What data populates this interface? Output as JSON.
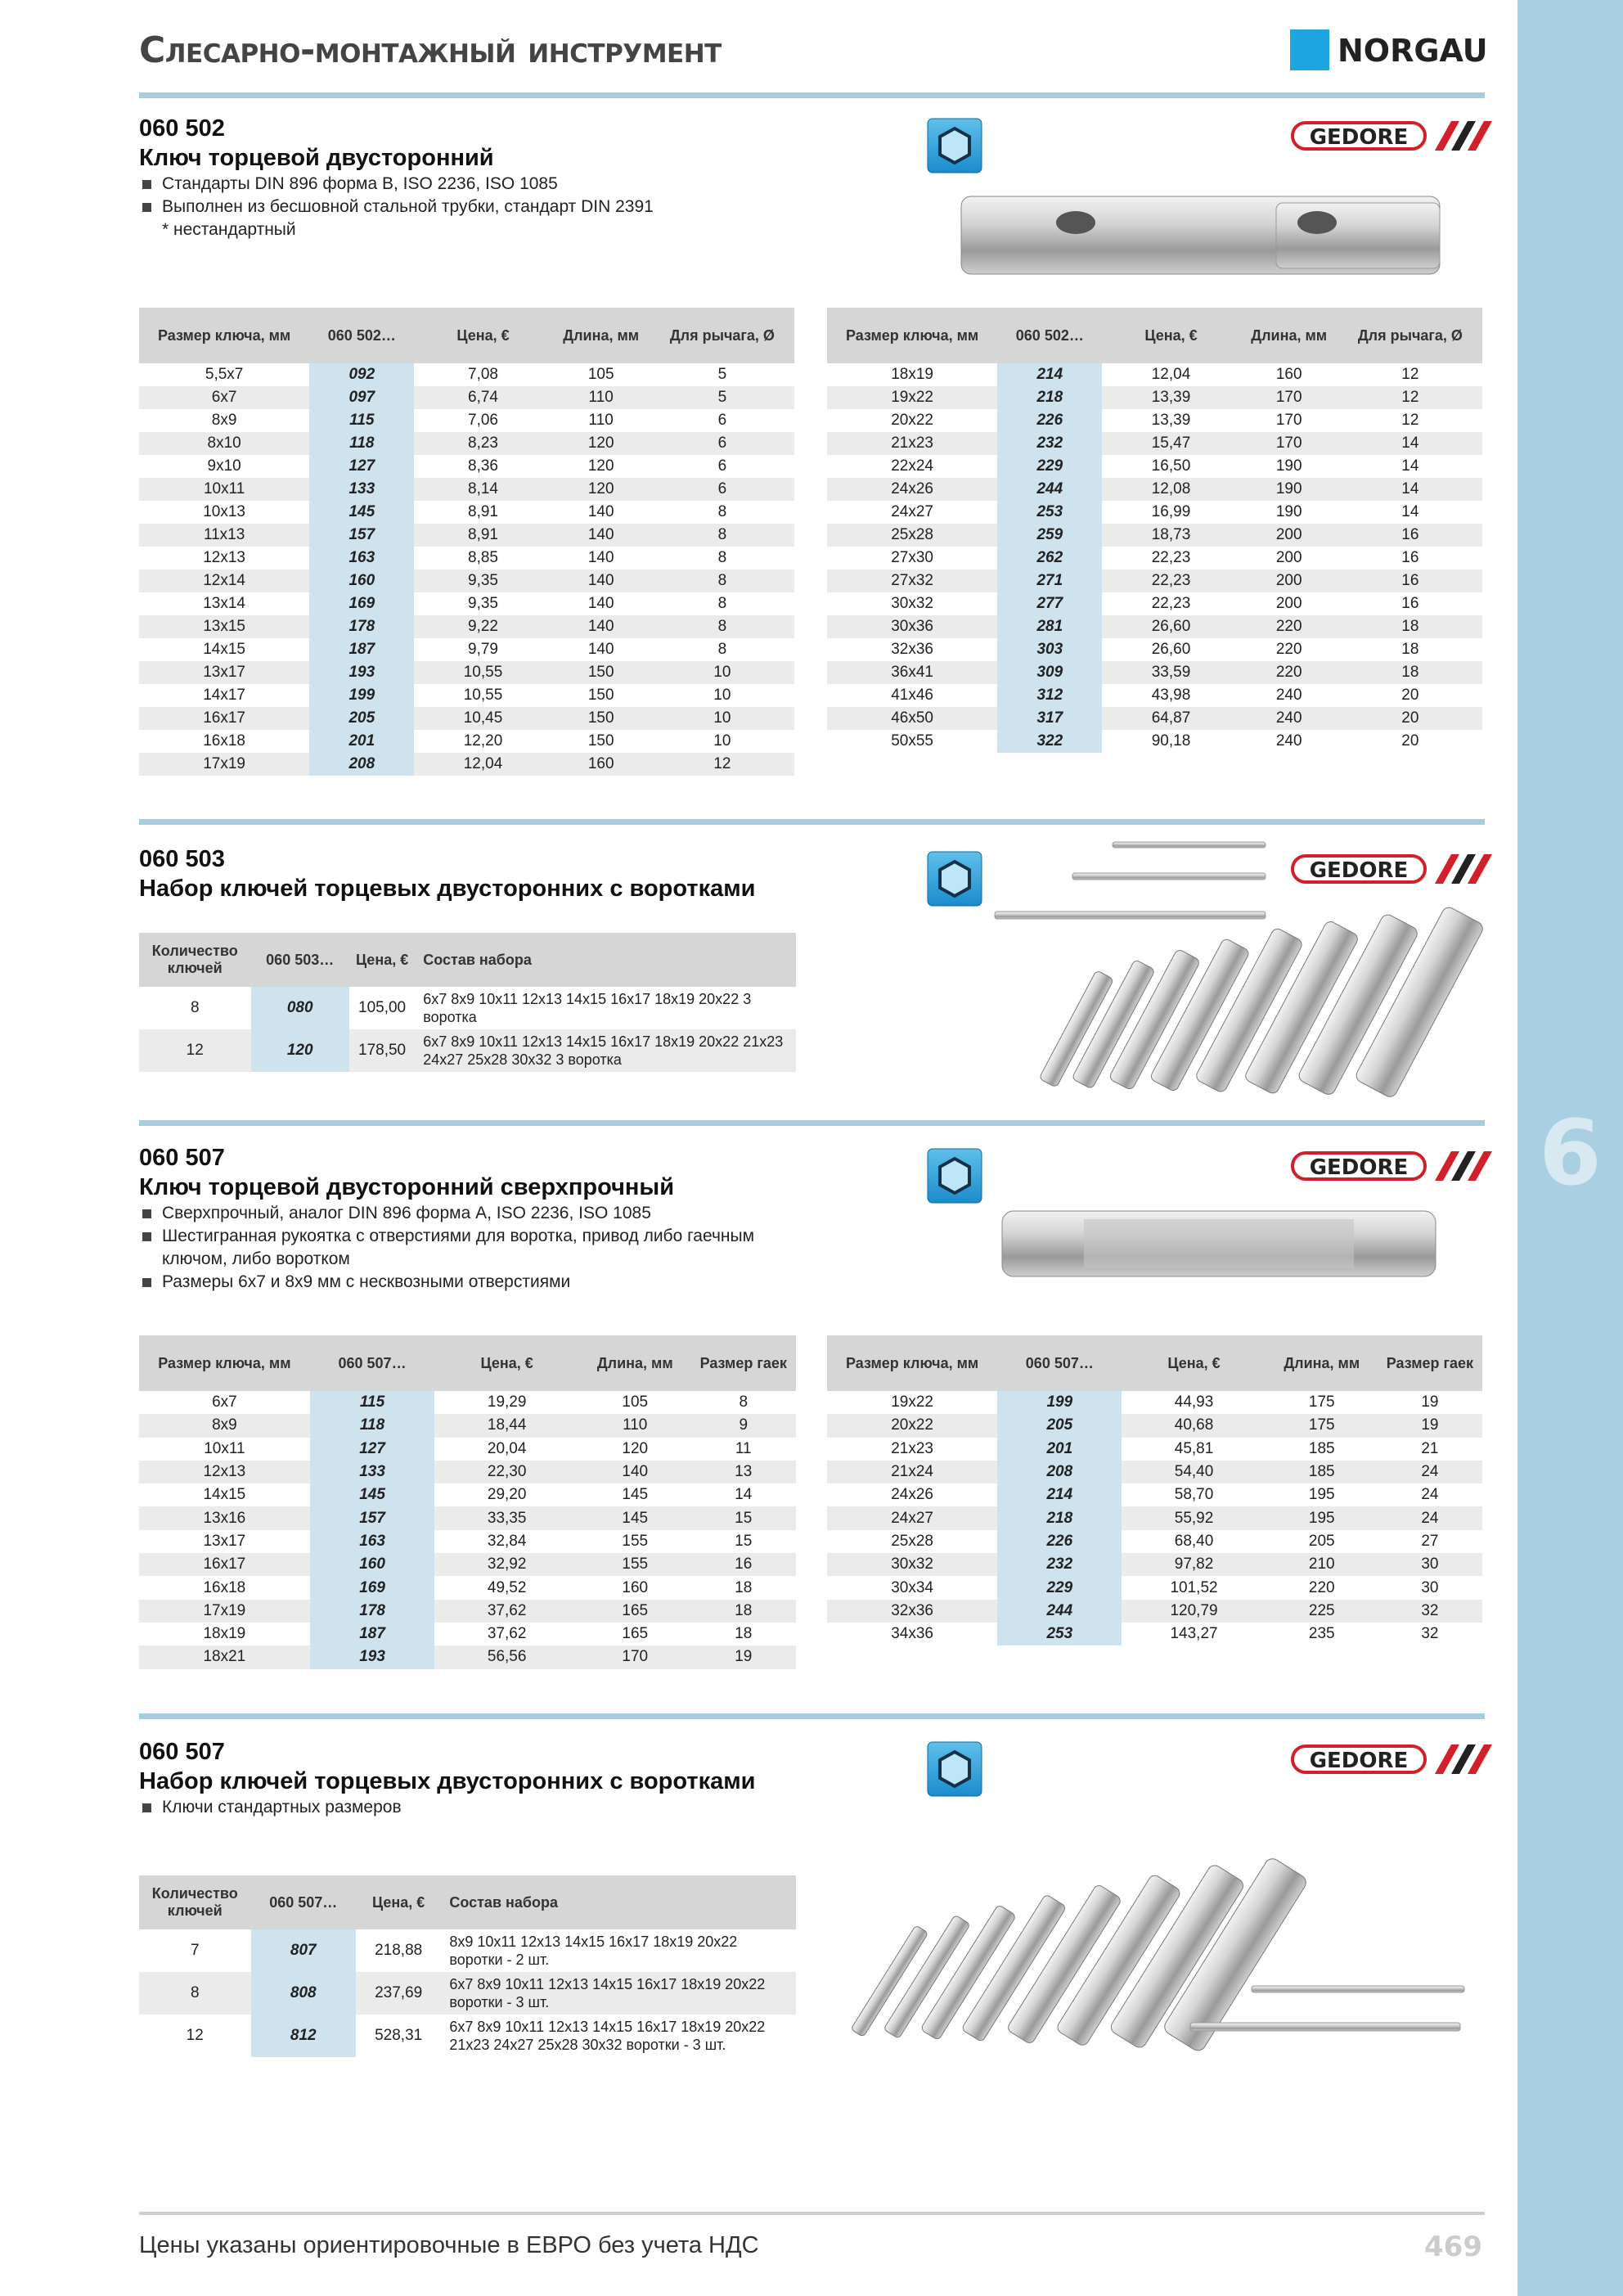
{
  "header": {
    "title": "Слесарно-монтажный инструмент",
    "brand": "NORGAU"
  },
  "side_tab": "6",
  "sections": [
    {
      "code": "060 502",
      "title": "Ключ торцевой двусторонний",
      "bullets": [
        "Стандарты DIN 896 форма B, ISO 2236, ISO 1085",
        "Выполнен из бесшовной стальной трубки, стандарт DIN 2391"
      ],
      "note": "* нестандартный",
      "logo": "GEDORE",
      "tables": [
        {
          "columns": [
            "Размер ключа, мм",
            "060 502…",
            "Цена, €",
            "Длина, мм",
            "Для рычага, Ø"
          ],
          "rows": [
            [
              "5,5x7",
              "092",
              "7,08",
              "105",
              "5"
            ],
            [
              "6x7",
              "097",
              "6,74",
              "110",
              "5"
            ],
            [
              "8x9",
              "115",
              "7,06",
              "110",
              "6"
            ],
            [
              "8x10",
              "118",
              "8,23",
              "120",
              "6"
            ],
            [
              "9x10",
              "127",
              "8,36",
              "120",
              "6"
            ],
            [
              "10x11",
              "133",
              "8,14",
              "120",
              "6"
            ],
            [
              "10x13",
              "145",
              "8,91",
              "140",
              "8"
            ],
            [
              "11x13",
              "157",
              "8,91",
              "140",
              "8"
            ],
            [
              "12x13",
              "163",
              "8,85",
              "140",
              "8"
            ],
            [
              "12x14",
              "160",
              "9,35",
              "140",
              "8"
            ],
            [
              "13x14",
              "169",
              "9,35",
              "140",
              "8"
            ],
            [
              "13x15",
              "178",
              "9,22",
              "140",
              "8"
            ],
            [
              "14x15",
              "187",
              "9,79",
              "140",
              "8"
            ],
            [
              "13x17",
              "193",
              "10,55",
              "150",
              "10"
            ],
            [
              "14x17",
              "199",
              "10,55",
              "150",
              "10"
            ],
            [
              "16x17",
              "205",
              "10,45",
              "150",
              "10"
            ],
            [
              "16x18",
              "201",
              "12,20",
              "150",
              "10"
            ],
            [
              "17x19",
              "208",
              "12,04",
              "160",
              "12"
            ]
          ]
        },
        {
          "columns": [
            "Размер ключа, мм",
            "060 502…",
            "Цена, €",
            "Длина, мм",
            "Для рычага, Ø"
          ],
          "rows": [
            [
              "18x19",
              "214",
              "12,04",
              "160",
              "12"
            ],
            [
              "19x22",
              "218",
              "13,39",
              "170",
              "12"
            ],
            [
              "20x22",
              "226",
              "13,39",
              "170",
              "12"
            ],
            [
              "21x23",
              "232",
              "15,47",
              "170",
              "14"
            ],
            [
              "22x24",
              "229",
              "16,50",
              "190",
              "14"
            ],
            [
              "24x26",
              "244",
              "12,08",
              "190",
              "14"
            ],
            [
              "24x27",
              "253",
              "16,99",
              "190",
              "14"
            ],
            [
              "25x28",
              "259",
              "18,73",
              "200",
              "16"
            ],
            [
              "27x30",
              "262",
              "22,23",
              "200",
              "16"
            ],
            [
              "27x32",
              "271",
              "22,23",
              "200",
              "16"
            ],
            [
              "30x32",
              "277",
              "22,23",
              "200",
              "16"
            ],
            [
              "30x36",
              "281",
              "26,60",
              "220",
              "18"
            ],
            [
              "32x36",
              "303",
              "26,60",
              "220",
              "18"
            ],
            [
              "36x41",
              "309",
              "33,59",
              "220",
              "18"
            ],
            [
              "41x46",
              "312",
              "43,98",
              "240",
              "20"
            ],
            [
              "46x50",
              "317",
              "64,87",
              "240",
              "20"
            ],
            [
              "50x55",
              "322",
              "90,18",
              "240",
              "20"
            ]
          ]
        }
      ]
    },
    {
      "code": "060 503",
      "title": "Набор ключей торцевых двусторонних с воротками",
      "logo": "GEDORE",
      "tables": [
        {
          "columns": [
            "Количество ключей",
            "060 503…",
            "Цена, €",
            "Состав набора"
          ],
          "rows": [
            [
              "8",
              "080",
              "105,00",
              "6x7  8x9  10x11  12x13  14x15  16x17  18x19  20x22 3 воротка"
            ],
            [
              "12",
              "120",
              "178,50",
              "6x7  8x9  10x11  12x13  14x15  16x17  18x19  20x22 21x23  24x27  25x28  30x32  3 воротка"
            ]
          ]
        }
      ]
    },
    {
      "code": "060 507",
      "title": "Ключ торцевой двусторонний сверхпрочный",
      "bullets": [
        "Сверхпрочный, аналог DIN 896 форма A, ISO 2236, ISO 1085",
        "Шестигранная рукоятка с отверстиями для воротка, привод либо гаечным ключом, либо воротком",
        "Размеры 6x7 и 8x9 мм с несквозными отверстиями"
      ],
      "logo": "GEDORE",
      "tables": [
        {
          "columns": [
            "Размер ключа, мм",
            "060 507…",
            "Цена, €",
            "Длина, мм",
            "Размер гаек"
          ],
          "rows": [
            [
              "6x7",
              "115",
              "19,29",
              "105",
              "8"
            ],
            [
              "8x9",
              "118",
              "18,44",
              "110",
              "9"
            ],
            [
              "10x11",
              "127",
              "20,04",
              "120",
              "11"
            ],
            [
              "12x13",
              "133",
              "22,30",
              "140",
              "13"
            ],
            [
              "14x15",
              "145",
              "29,20",
              "145",
              "14"
            ],
            [
              "13x16",
              "157",
              "33,35",
              "145",
              "15"
            ],
            [
              "13x17",
              "163",
              "32,84",
              "155",
              "15"
            ],
            [
              "16x17",
              "160",
              "32,92",
              "155",
              "16"
            ],
            [
              "16x18",
              "169",
              "49,52",
              "160",
              "18"
            ],
            [
              "17x19",
              "178",
              "37,62",
              "165",
              "18"
            ],
            [
              "18x19",
              "187",
              "37,62",
              "165",
              "18"
            ],
            [
              "18x21",
              "193",
              "56,56",
              "170",
              "19"
            ]
          ]
        },
        {
          "columns": [
            "Размер ключа, мм",
            "060 507…",
            "Цена, €",
            "Длина, мм",
            "Размер гаек"
          ],
          "rows": [
            [
              "19x22",
              "199",
              "44,93",
              "175",
              "19"
            ],
            [
              "20x22",
              "205",
              "40,68",
              "175",
              "19"
            ],
            [
              "21x23",
              "201",
              "45,81",
              "185",
              "21"
            ],
            [
              "21x24",
              "208",
              "54,40",
              "185",
              "24"
            ],
            [
              "24x26",
              "214",
              "58,70",
              "195",
              "24"
            ],
            [
              "24x27",
              "218",
              "55,92",
              "195",
              "24"
            ],
            [
              "25x28",
              "226",
              "68,40",
              "205",
              "27"
            ],
            [
              "30x32",
              "232",
              "97,82",
              "210",
              "30"
            ],
            [
              "30x34",
              "229",
              "101,52",
              "220",
              "30"
            ],
            [
              "32x36",
              "244",
              "120,79",
              "225",
              "32"
            ],
            [
              "34x36",
              "253",
              "143,27",
              "235",
              "32"
            ]
          ]
        }
      ]
    },
    {
      "code": "060 507",
      "title": "Набор ключей торцевых двусторонних с воротками",
      "bullets": [
        "Ключи стандартных размеров"
      ],
      "logo": "GEDORE",
      "tables": [
        {
          "columns": [
            "Количество ключей",
            "060 507…",
            "Цена, €",
            "Состав набора"
          ],
          "rows": [
            [
              "7",
              "807",
              "218,88",
              "8x9 10x11 12x13 14x15 16x17 18x19 20x22 воротки - 2 шт."
            ],
            [
              "8",
              "808",
              "237,69",
              "6x7 8x9 10x11 12x13 14x15 16x17 18x19 20x22 воротки - 3 шт."
            ],
            [
              "12",
              "812",
              "528,31",
              "6x7 8x9 10x11 12x13 14x15 16x17 18x19 20x22 21x23 24x27 25x28 30x32 воротки - 3 шт."
            ]
          ]
        }
      ]
    }
  ],
  "footer": {
    "note": "Цены указаны ориентировочные в ЕВРО без учета НДС",
    "page": "469"
  }
}
